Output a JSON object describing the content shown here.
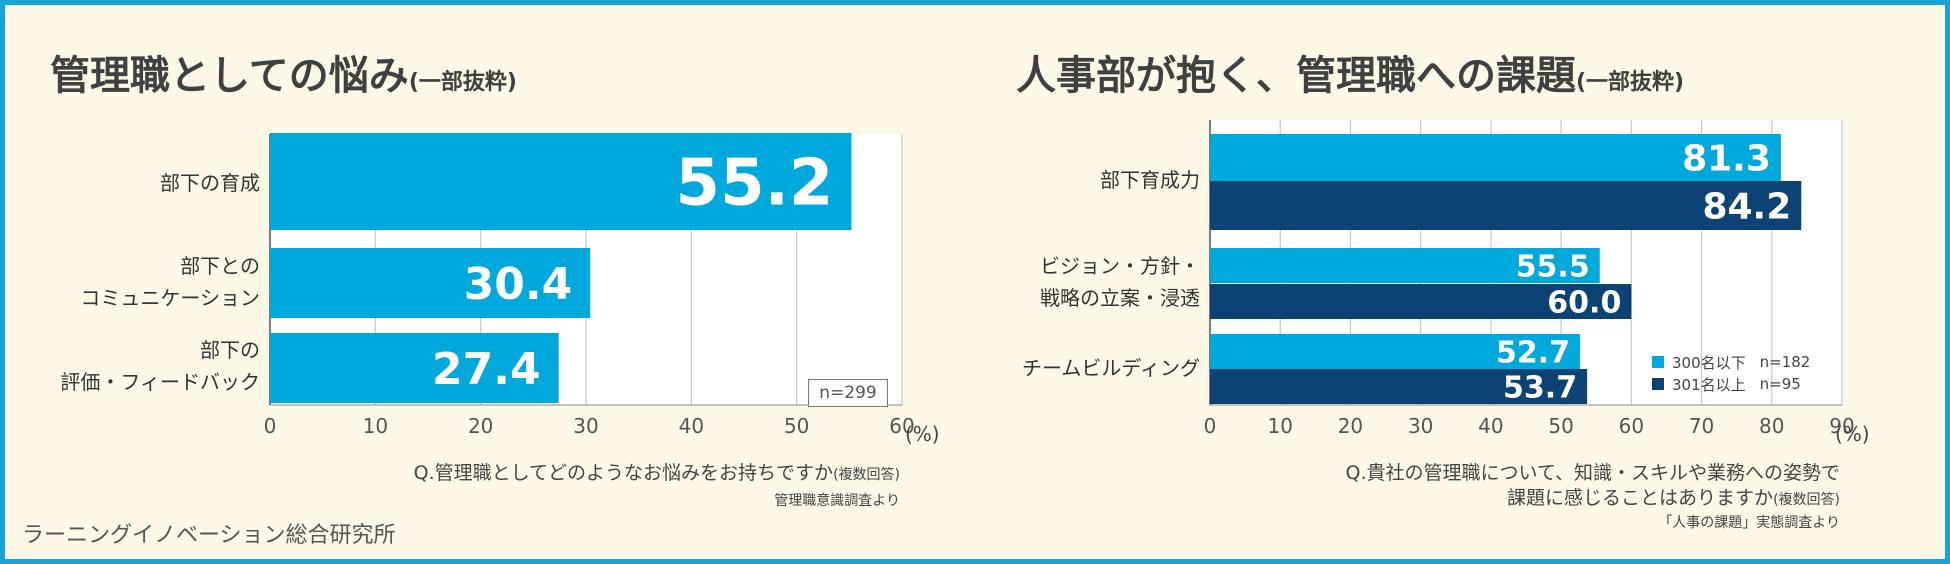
{
  "colors": {
    "light": "#00a9dc",
    "dark": "#0d4275",
    "border": "#18a4d6",
    "background": "#fdf9e6"
  },
  "left": {
    "title": "管理職としての悩み",
    "title_suffix": "(一部抜粋)",
    "categories": [
      "部下の育成",
      "部下との\nコミュニケーション",
      "部下の\n評価・フィードバック"
    ],
    "n_label": "n=299",
    "question": "Q.管理職としてどのようなお悩みをお持ちですか",
    "question_note": "(複数回答)",
    "source": "管理職意識調査より",
    "unit": "(%)"
  },
  "right": {
    "title": "人事部が抱く、管理職への課題",
    "title_suffix": "(一部抜粋)",
    "categories": [
      "部下育成力",
      "ビジョン・方針・\n戦略の立案・浸透",
      "チームビルディング"
    ],
    "question_line1": "Q.貴社の管理職について、知識・スキルや業務への姿勢で",
    "question_line2": "課題に感じることはありますか",
    "question_note": "(複数回答)",
    "source": "「人事の課題」実態調査より",
    "unit": "(%)",
    "legend": [
      {
        "label": "300名以下",
        "n": "n=182",
        "color": "#00a9dc"
      },
      {
        "label": "301名以上",
        "n": "n=95",
        "color": "#0d4275"
      }
    ]
  },
  "footer": "ラーニングイノベーション総合研究所",
  "chart_data": [
    {
      "type": "bar",
      "orientation": "horizontal",
      "title": "管理職としての悩み(一部抜粋)",
      "categories": [
        "部下の育成",
        "部下とのコミュニケーション",
        "部下の評価・フィードバック"
      ],
      "values": [
        55.2,
        30.4,
        27.4
      ],
      "xlim": [
        0,
        60
      ],
      "xticks": [
        0,
        10,
        20,
        30,
        40,
        50,
        60
      ],
      "xlabel": "(%)",
      "grid": true
    },
    {
      "type": "bar",
      "orientation": "horizontal",
      "title": "人事部が抱く、管理職への課題(一部抜粋)",
      "categories": [
        "部下育成力",
        "ビジョン・方針・戦略の立案・浸透",
        "チームビルディング"
      ],
      "series": [
        {
          "name": "300名以下 n=182",
          "values": [
            81.3,
            55.5,
            52.7
          ]
        },
        {
          "name": "301名以上 n=95",
          "values": [
            84.2,
            60.0,
            53.7
          ]
        }
      ],
      "xlim": [
        0,
        90
      ],
      "xticks": [
        0,
        10,
        20,
        30,
        40,
        50,
        60,
        70,
        80,
        90
      ],
      "xlabel": "(%)",
      "grid": true,
      "legend": "bottom-right"
    }
  ]
}
